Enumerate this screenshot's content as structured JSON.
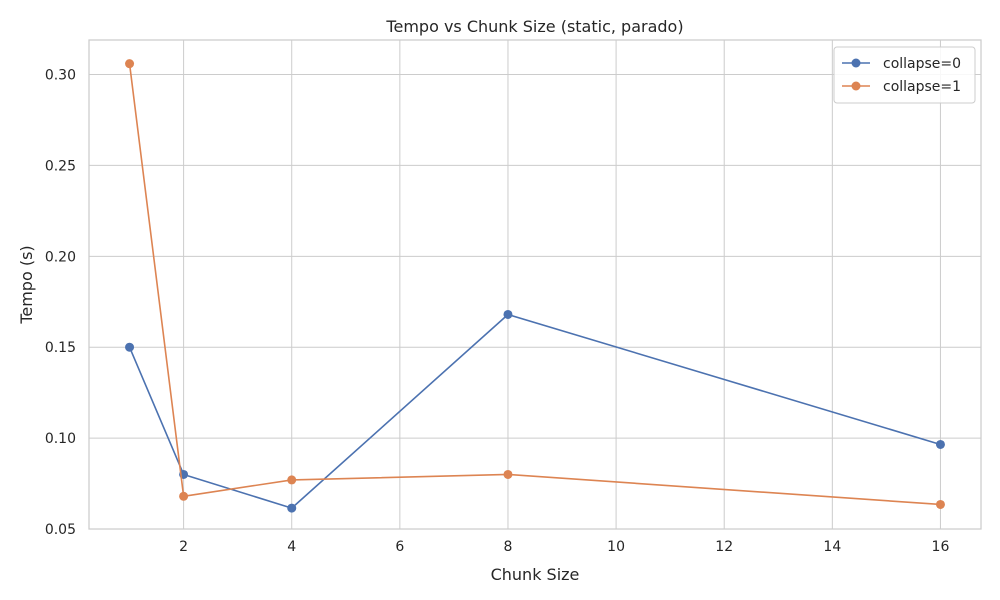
{
  "chart_data": {
    "type": "line",
    "title": "Tempo vs Chunk Size (static, parado)",
    "xlabel": "Chunk Size",
    "ylabel": "Tempo (s)",
    "x": [
      1,
      2,
      4,
      8,
      16
    ],
    "series": [
      {
        "name": "collapse=0",
        "color": "#4c72b0",
        "values": [
          0.15,
          0.08,
          0.0615,
          0.168,
          0.0965
        ]
      },
      {
        "name": "collapse=1",
        "color": "#dd8452",
        "values": [
          0.306,
          0.068,
          0.077,
          0.08,
          0.0635
        ]
      }
    ],
    "xlim": [
      0.25,
      16.75
    ],
    "ylim": [
      0.05,
      0.319
    ],
    "xticks": [
      2,
      4,
      6,
      8,
      10,
      12,
      14,
      16
    ],
    "yticks": [
      0.05,
      0.1,
      0.15,
      0.2,
      0.25,
      0.3
    ],
    "ytick_labels": [
      "0.05",
      "0.10",
      "0.15",
      "0.20",
      "0.25",
      "0.30"
    ],
    "grid": true,
    "legend_position": "top-right"
  }
}
